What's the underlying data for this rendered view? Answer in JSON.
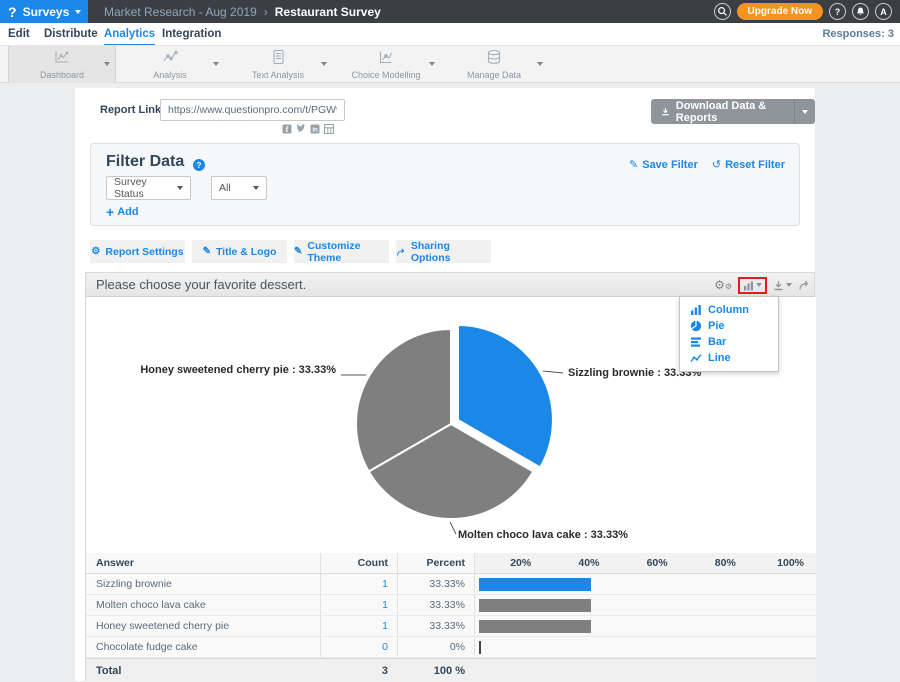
{
  "colors": {
    "brand_blue": "#1B87E6",
    "header_dark": "#3B3F45",
    "upgrade_orange": "#F7941E",
    "pie_gray": "#7F7F7F",
    "highlight_red": "#E11E1E"
  },
  "icons": {
    "logo": "?",
    "gear": "⚙",
    "pencil": "✎",
    "reset": "↺",
    "plus": "+",
    "help": "?"
  },
  "topbar": {
    "product": "Surveys",
    "breadcrumb_folder": "Market Research - Aug 2019",
    "breadcrumb_sep": "›",
    "breadcrumb_survey": "Restaurant Survey",
    "upgrade_label": "Upgrade Now",
    "help_label": "?",
    "avatar_label": "A"
  },
  "nav": {
    "edit": "Edit",
    "distribute": "Distribute",
    "analytics": "Analytics",
    "integration": "Integration",
    "responses": "Responses: 3"
  },
  "toolbar": {
    "dashboard": "Dashboard",
    "analysis": "Analysis",
    "text_analysis": "Text Analysis",
    "choice_modelling": "Choice Modelling",
    "manage_data": "Manage Data"
  },
  "report": {
    "link_label": "Report Link",
    "link_value": "https://www.questionpro.com/t/PGW9HZe4",
    "download_label": "Download Data & Reports"
  },
  "filter": {
    "title": "Filter Data",
    "save": "Save Filter",
    "reset": "Reset Filter",
    "field": "Survey Status",
    "value": "All",
    "add": "Add"
  },
  "tabs": {
    "report_settings": "Report Settings",
    "title_logo": "Title & Logo",
    "customize_theme": "Customize Theme",
    "sharing_options": "Sharing Options"
  },
  "question": {
    "title": "Please choose your favorite dessert."
  },
  "chart_menu": {
    "column": "Column",
    "pie": "Pie",
    "bar": "Bar",
    "line": "Line"
  },
  "chart_data": {
    "type": "pie",
    "title": "Please choose your favorite dessert.",
    "labels": [
      "Sizzling brownie",
      "Molten choco lava cake",
      "Honey sweetened cherry pie"
    ],
    "values": [
      33.33,
      33.33,
      33.33
    ],
    "colors": [
      "#1B87E6",
      "#7F7F7F",
      "#7F7F7F"
    ],
    "exploded_slice": 0,
    "slice_labels": [
      "Sizzling brownie : 33.33%",
      "Molten choco lava cake : 33.33%",
      "Honey sweetened cherry pie : 33.33%"
    ],
    "legend_position": "none"
  },
  "table": {
    "headers": {
      "answer": "Answer",
      "count": "Count",
      "percent": "Percent"
    },
    "scale": [
      "20%",
      "40%",
      "60%",
      "80%",
      "100%"
    ],
    "rows": [
      {
        "answer": "Sizzling brownie",
        "count": "1",
        "percent": "33.33%",
        "value": 33.33,
        "color": "#1B87E6"
      },
      {
        "answer": "Molten choco lava cake",
        "count": "1",
        "percent": "33.33%",
        "value": 33.33,
        "color": "#7F7F7F"
      },
      {
        "answer": "Honey sweetened cherry pie",
        "count": "1",
        "percent": "33.33%",
        "value": 33.33,
        "color": "#7F7F7F"
      },
      {
        "answer": "Chocolate fudge cake",
        "count": "0",
        "percent": "0%",
        "value": 0,
        "color": "#444444"
      }
    ],
    "total": {
      "label": "Total",
      "count": "3",
      "percent": "100 %"
    }
  }
}
